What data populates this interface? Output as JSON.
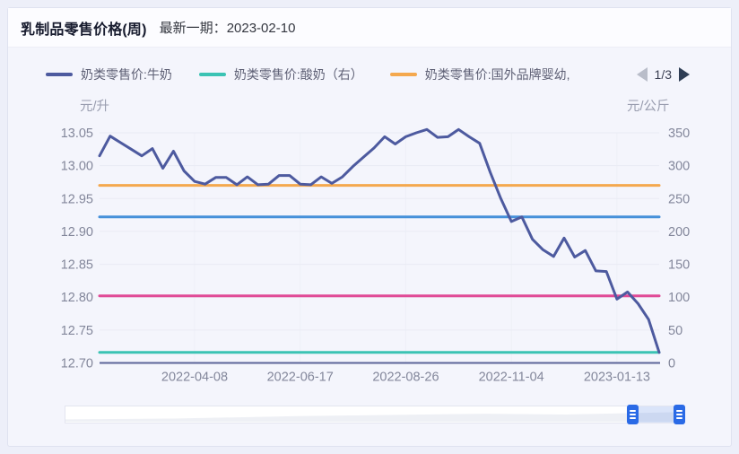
{
  "header": {
    "title": "乳制品零售价格(周)",
    "latest_label": "最新一期：",
    "latest_date": "2023-02-10"
  },
  "legend": {
    "items": [
      {
        "label": "奶类零售价:牛奶",
        "color": "#4d5a9f"
      },
      {
        "label": "奶类零售价:酸奶（右）",
        "color": "#3bc3b4"
      },
      {
        "label": "奶类零售价:国外品牌婴幼,",
        "color": "#f4a84e"
      }
    ],
    "pagination": {
      "text": "1/3",
      "prev_enabled": false,
      "next_enabled": true
    }
  },
  "chart_data": {
    "type": "line",
    "left_axis": {
      "title": "元/升",
      "min": 12.7,
      "max": 13.05,
      "step": 0.05,
      "ticks": [
        "13.05",
        "13.00",
        "12.95",
        "12.90",
        "12.85",
        "12.80",
        "12.75",
        "12.70"
      ]
    },
    "right_axis": {
      "title": "元/公斤",
      "min": 0,
      "max": 350,
      "step": 50,
      "ticks": [
        "350",
        "300",
        "250",
        "200",
        "150",
        "100",
        "50",
        "0"
      ]
    },
    "x_axis": {
      "n_points": 54,
      "tick_labels": [
        "2022-04-08",
        "2022-06-17",
        "2022-08-26",
        "2022-11-04",
        "2023-01-13"
      ],
      "tick_indices": [
        9,
        19,
        29,
        39,
        49
      ]
    },
    "grid": true,
    "series": [
      {
        "name": "奶类零售价:牛奶",
        "axis": "left",
        "color": "#4d5a9f",
        "values": [
          13.015,
          13.045,
          13.035,
          13.025,
          13.015,
          13.026,
          12.996,
          13.022,
          12.992,
          12.976,
          12.972,
          12.982,
          12.982,
          12.971,
          12.983,
          12.971,
          12.972,
          12.985,
          12.985,
          12.972,
          12.971,
          12.983,
          12.973,
          12.983,
          12.999,
          13.013,
          13.027,
          13.044,
          13.033,
          13.044,
          13.05,
          13.055,
          13.043,
          13.044,
          13.055,
          13.044,
          13.034,
          12.99,
          12.95,
          12.915,
          12.922,
          12.888,
          12.872,
          12.862,
          12.89,
          12.861,
          12.871,
          12.84,
          12.839,
          12.797,
          12.808,
          12.79,
          12.766,
          12.716
        ]
      },
      {
        "name": "奶类零售价:酸奶（右）",
        "axis": "right",
        "color": "#3bc3b4",
        "flat_value": 16,
        "legend_visible": true
      },
      {
        "name": "奶类零售价:国外品牌婴幼,",
        "axis": "right",
        "color": "#f4a84e",
        "flat_value": 270,
        "legend_visible": true
      },
      {
        "name": "",
        "axis": "right",
        "color": "#4590d9",
        "flat_value": 222,
        "legend_visible": false
      },
      {
        "name": "",
        "axis": "right",
        "color": "#e04a96",
        "flat_value": 102,
        "legend_visible": false
      }
    ]
  },
  "datazoom": {
    "selected_range_percent": [
      91.6,
      99.0
    ]
  }
}
